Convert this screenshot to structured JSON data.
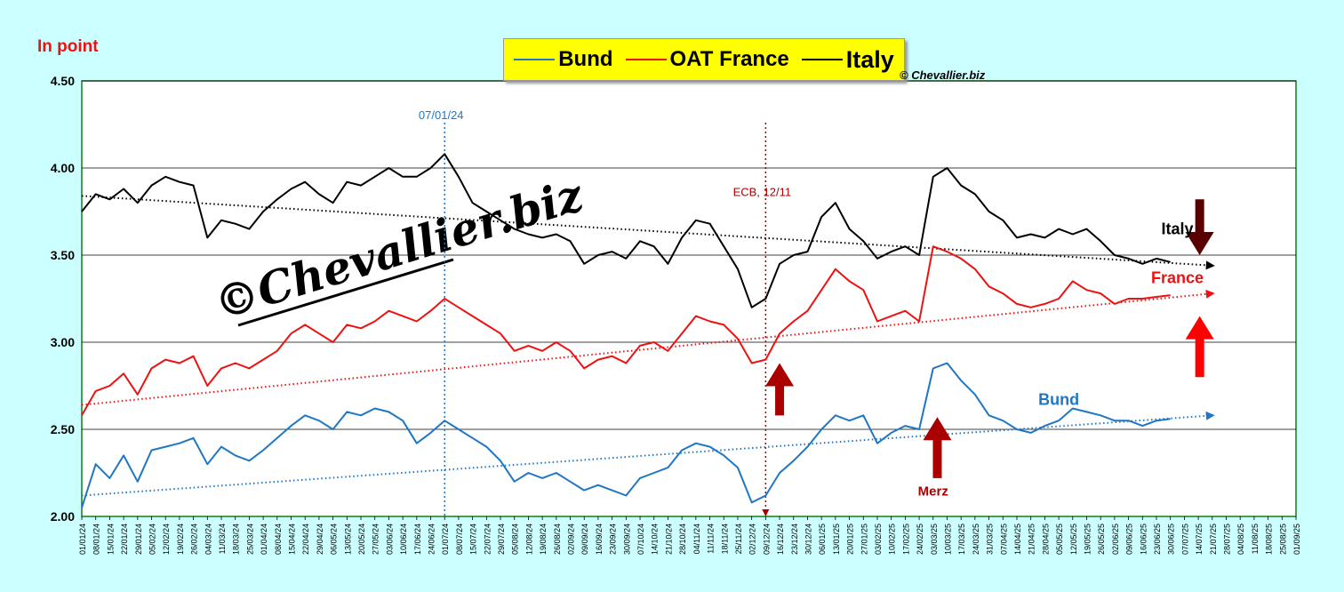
{
  "chart_data": {
    "type": "line",
    "title": "",
    "unit_label": "In point",
    "ylabel": "",
    "xlabel": "",
    "ylim": [
      2.0,
      4.5
    ],
    "yticks": [
      "2.00",
      "2.50",
      "3.00",
      "3.50",
      "4.00",
      "4.50"
    ],
    "grid": "horizontal",
    "x_tick_labels": [
      "01/01/24",
      "08/01/24",
      "15/01/24",
      "22/01/24",
      "29/01/24",
      "05/02/24",
      "12/02/24",
      "19/02/24",
      "26/02/24",
      "04/03/24",
      "11/03/24",
      "18/03/24",
      "25/03/24",
      "01/04/24",
      "08/04/24",
      "15/04/24",
      "22/04/24",
      "29/04/24",
      "06/05/24",
      "13/05/24",
      "20/05/24",
      "27/05/24",
      "03/06/24",
      "10/06/24",
      "17/06/24",
      "24/06/24",
      "01/07/24",
      "08/07/24",
      "15/07/24",
      "22/07/24",
      "29/07/24",
      "05/08/24",
      "12/08/24",
      "19/08/24",
      "26/08/24",
      "02/09/24",
      "09/09/24",
      "16/09/24",
      "23/09/24",
      "30/09/24",
      "07/10/24",
      "14/10/24",
      "21/10/24",
      "28/10/24",
      "04/11/24",
      "11/11/24",
      "18/11/24",
      "25/11/24",
      "02/12/24",
      "09/12/24",
      "16/12/24",
      "23/12/24",
      "30/12/24",
      "06/01/25",
      "13/01/25",
      "20/01/25",
      "27/01/25",
      "03/02/25",
      "10/02/25",
      "17/02/25",
      "24/02/25",
      "03/03/25",
      "10/03/25",
      "17/03/25",
      "24/03/25",
      "31/03/25",
      "07/04/25",
      "14/04/25",
      "21/04/25",
      "28/04/25",
      "05/05/25",
      "12/05/25",
      "19/05/25",
      "26/05/25",
      "02/06/25",
      "09/06/25",
      "16/06/25",
      "23/06/25",
      "30/06/25",
      "07/07/25",
      "14/07/25",
      "21/07/25",
      "28/07/25",
      "04/08/25",
      "11/08/25",
      "18/08/25",
      "25/08/25",
      "01/09/25"
    ],
    "legend": [
      "Bund",
      "OAT France",
      "Italy"
    ],
    "legend_position": "top-center",
    "series": [
      {
        "name": "Bund",
        "color": "#1f77c4",
        "points": [
          [
            0,
            2.05
          ],
          [
            1,
            2.3
          ],
          [
            2,
            2.22
          ],
          [
            3,
            2.35
          ],
          [
            4,
            2.2
          ],
          [
            5,
            2.38
          ],
          [
            6,
            2.4
          ],
          [
            7,
            2.42
          ],
          [
            8,
            2.45
          ],
          [
            9,
            2.3
          ],
          [
            10,
            2.4
          ],
          [
            11,
            2.35
          ],
          [
            12,
            2.32
          ],
          [
            13,
            2.38
          ],
          [
            14,
            2.45
          ],
          [
            15,
            2.52
          ],
          [
            16,
            2.58
          ],
          [
            17,
            2.55
          ],
          [
            18,
            2.5
          ],
          [
            19,
            2.6
          ],
          [
            20,
            2.58
          ],
          [
            21,
            2.62
          ],
          [
            22,
            2.6
          ],
          [
            23,
            2.55
          ],
          [
            24,
            2.42
          ],
          [
            25,
            2.48
          ],
          [
            26,
            2.55
          ],
          [
            27,
            2.5
          ],
          [
            28,
            2.45
          ],
          [
            29,
            2.4
          ],
          [
            30,
            2.32
          ],
          [
            31,
            2.2
          ],
          [
            32,
            2.25
          ],
          [
            33,
            2.22
          ],
          [
            34,
            2.25
          ],
          [
            35,
            2.2
          ],
          [
            36,
            2.15
          ],
          [
            37,
            2.18
          ],
          [
            38,
            2.15
          ],
          [
            39,
            2.12
          ],
          [
            40,
            2.22
          ],
          [
            41,
            2.25
          ],
          [
            42,
            2.28
          ],
          [
            43,
            2.38
          ],
          [
            44,
            2.42
          ],
          [
            45,
            2.4
          ],
          [
            46,
            2.35
          ],
          [
            47,
            2.28
          ],
          [
            48,
            2.08
          ],
          [
            49,
            2.12
          ],
          [
            50,
            2.25
          ],
          [
            51,
            2.32
          ],
          [
            52,
            2.4
          ],
          [
            53,
            2.5
          ],
          [
            54,
            2.58
          ],
          [
            55,
            2.55
          ],
          [
            56,
            2.58
          ],
          [
            57,
            2.42
          ],
          [
            58,
            2.48
          ],
          [
            59,
            2.52
          ],
          [
            60,
            2.5
          ],
          [
            61,
            2.85
          ],
          [
            62,
            2.88
          ],
          [
            63,
            2.78
          ],
          [
            64,
            2.7
          ],
          [
            65,
            2.58
          ],
          [
            66,
            2.55
          ],
          [
            67,
            2.5
          ],
          [
            68,
            2.48
          ],
          [
            69,
            2.52
          ],
          [
            70,
            2.55
          ],
          [
            71,
            2.62
          ],
          [
            72,
            2.6
          ],
          [
            73,
            2.58
          ],
          [
            74,
            2.55
          ],
          [
            75,
            2.55
          ],
          [
            76,
            2.52
          ],
          [
            77,
            2.55
          ],
          [
            78,
            2.56
          ]
        ]
      },
      {
        "name": "OAT France",
        "color": "#ee1111",
        "points": [
          [
            0,
            2.58
          ],
          [
            1,
            2.72
          ],
          [
            2,
            2.75
          ],
          [
            3,
            2.82
          ],
          [
            4,
            2.7
          ],
          [
            5,
            2.85
          ],
          [
            6,
            2.9
          ],
          [
            7,
            2.88
          ],
          [
            8,
            2.92
          ],
          [
            9,
            2.75
          ],
          [
            10,
            2.85
          ],
          [
            11,
            2.88
          ],
          [
            12,
            2.85
          ],
          [
            13,
            2.9
          ],
          [
            14,
            2.95
          ],
          [
            15,
            3.05
          ],
          [
            16,
            3.1
          ],
          [
            17,
            3.05
          ],
          [
            18,
            3.0
          ],
          [
            19,
            3.1
          ],
          [
            20,
            3.08
          ],
          [
            21,
            3.12
          ],
          [
            22,
            3.18
          ],
          [
            23,
            3.15
          ],
          [
            24,
            3.12
          ],
          [
            25,
            3.18
          ],
          [
            26,
            3.25
          ],
          [
            27,
            3.2
          ],
          [
            28,
            3.15
          ],
          [
            29,
            3.1
          ],
          [
            30,
            3.05
          ],
          [
            31,
            2.95
          ],
          [
            32,
            2.98
          ],
          [
            33,
            2.95
          ],
          [
            34,
            3.0
          ],
          [
            35,
            2.95
          ],
          [
            36,
            2.85
          ],
          [
            37,
            2.9
          ],
          [
            38,
            2.92
          ],
          [
            39,
            2.88
          ],
          [
            40,
            2.98
          ],
          [
            41,
            3.0
          ],
          [
            42,
            2.95
          ],
          [
            43,
            3.05
          ],
          [
            44,
            3.15
          ],
          [
            45,
            3.12
          ],
          [
            46,
            3.1
          ],
          [
            47,
            3.02
          ],
          [
            48,
            2.88
          ],
          [
            49,
            2.9
          ],
          [
            50,
            3.05
          ],
          [
            51,
            3.12
          ],
          [
            52,
            3.18
          ],
          [
            53,
            3.3
          ],
          [
            54,
            3.42
          ],
          [
            55,
            3.35
          ],
          [
            56,
            3.3
          ],
          [
            57,
            3.12
          ],
          [
            58,
            3.15
          ],
          [
            59,
            3.18
          ],
          [
            60,
            3.12
          ],
          [
            61,
            3.55
          ],
          [
            62,
            3.52
          ],
          [
            63,
            3.48
          ],
          [
            64,
            3.42
          ],
          [
            65,
            3.32
          ],
          [
            66,
            3.28
          ],
          [
            67,
            3.22
          ],
          [
            68,
            3.2
          ],
          [
            69,
            3.22
          ],
          [
            70,
            3.25
          ],
          [
            71,
            3.35
          ],
          [
            72,
            3.3
          ],
          [
            73,
            3.28
          ],
          [
            74,
            3.22
          ],
          [
            75,
            3.25
          ],
          [
            76,
            3.25
          ],
          [
            77,
            3.26
          ],
          [
            78,
            3.27
          ]
        ]
      },
      {
        "name": "Italy",
        "color": "#000000",
        "points": [
          [
            0,
            3.75
          ],
          [
            1,
            3.85
          ],
          [
            2,
            3.82
          ],
          [
            3,
            3.88
          ],
          [
            4,
            3.8
          ],
          [
            5,
            3.9
          ],
          [
            6,
            3.95
          ],
          [
            7,
            3.92
          ],
          [
            8,
            3.9
          ],
          [
            9,
            3.6
          ],
          [
            10,
            3.7
          ],
          [
            11,
            3.68
          ],
          [
            12,
            3.65
          ],
          [
            13,
            3.75
          ],
          [
            14,
            3.82
          ],
          [
            15,
            3.88
          ],
          [
            16,
            3.92
          ],
          [
            17,
            3.85
          ],
          [
            18,
            3.8
          ],
          [
            19,
            3.92
          ],
          [
            20,
            3.9
          ],
          [
            21,
            3.95
          ],
          [
            22,
            4.0
          ],
          [
            23,
            3.95
          ],
          [
            24,
            3.95
          ],
          [
            25,
            4.0
          ],
          [
            26,
            4.08
          ],
          [
            27,
            3.95
          ],
          [
            28,
            3.8
          ],
          [
            29,
            3.75
          ],
          [
            30,
            3.7
          ],
          [
            31,
            3.65
          ],
          [
            32,
            3.62
          ],
          [
            33,
            3.6
          ],
          [
            34,
            3.62
          ],
          [
            35,
            3.58
          ],
          [
            36,
            3.45
          ],
          [
            37,
            3.5
          ],
          [
            38,
            3.52
          ],
          [
            39,
            3.48
          ],
          [
            40,
            3.58
          ],
          [
            41,
            3.55
          ],
          [
            42,
            3.45
          ],
          [
            43,
            3.6
          ],
          [
            44,
            3.7
          ],
          [
            45,
            3.68
          ],
          [
            46,
            3.55
          ],
          [
            47,
            3.42
          ],
          [
            48,
            3.2
          ],
          [
            49,
            3.25
          ],
          [
            50,
            3.45
          ],
          [
            51,
            3.5
          ],
          [
            52,
            3.52
          ],
          [
            53,
            3.72
          ],
          [
            54,
            3.8
          ],
          [
            55,
            3.65
          ],
          [
            56,
            3.58
          ],
          [
            57,
            3.48
          ],
          [
            58,
            3.52
          ],
          [
            59,
            3.55
          ],
          [
            60,
            3.5
          ],
          [
            61,
            3.95
          ],
          [
            62,
            4.0
          ],
          [
            63,
            3.9
          ],
          [
            64,
            3.85
          ],
          [
            65,
            3.75
          ],
          [
            66,
            3.7
          ],
          [
            67,
            3.6
          ],
          [
            68,
            3.62
          ],
          [
            69,
            3.6
          ],
          [
            70,
            3.65
          ],
          [
            71,
            3.62
          ],
          [
            72,
            3.65
          ],
          [
            73,
            3.58
          ],
          [
            74,
            3.5
          ],
          [
            75,
            3.48
          ],
          [
            76,
            3.45
          ],
          [
            77,
            3.48
          ],
          [
            78,
            3.46
          ]
        ]
      }
    ],
    "trendlines": [
      {
        "series": "Bund",
        "from": [
          0,
          2.12
        ],
        "to": [
          81,
          2.58
        ],
        "color": "#1f77c4"
      },
      {
        "series": "OAT France",
        "from": [
          0,
          2.64
        ],
        "to": [
          81,
          3.28
        ],
        "color": "#ee1111"
      },
      {
        "series": "Italy",
        "from": [
          0,
          3.84
        ],
        "to": [
          81,
          3.44
        ],
        "color": "#000000"
      }
    ],
    "vlines": [
      {
        "x": 26,
        "label": "07/01/24",
        "color": "#1f77c4"
      },
      {
        "x": 49,
        "label": "ECB, 12/11",
        "color": "#aa0000"
      }
    ],
    "annotations": [
      {
        "text": "Italy",
        "x": 78.5,
        "y": 3.62,
        "color": "#000000"
      },
      {
        "text": "France",
        "x": 78.5,
        "y": 3.34,
        "color": "#ee1111"
      },
      {
        "text": "Bund",
        "x": 70,
        "y": 2.64,
        "color": "#1f77c4"
      },
      {
        "text": "Merz",
        "x": 61,
        "y": 2.12,
        "color": "#aa0000"
      }
    ],
    "arrows": [
      {
        "x": 50,
        "y_from": 2.58,
        "y_to": 2.88,
        "direction": "up",
        "color": "#aa0000"
      },
      {
        "x": 61.3,
        "y_from": 2.22,
        "y_to": 2.57,
        "direction": "up",
        "color": "#aa0000"
      },
      {
        "x": 80.1,
        "y_from": 3.82,
        "y_to": 3.5,
        "direction": "down",
        "color": "#5a0000"
      },
      {
        "x": 80.1,
        "y_from": 2.8,
        "y_to": 3.15,
        "direction": "up",
        "color": "#ff0000"
      }
    ],
    "watermark": "©Chevallier.biz",
    "copyright": "© Chevallier.biz"
  }
}
